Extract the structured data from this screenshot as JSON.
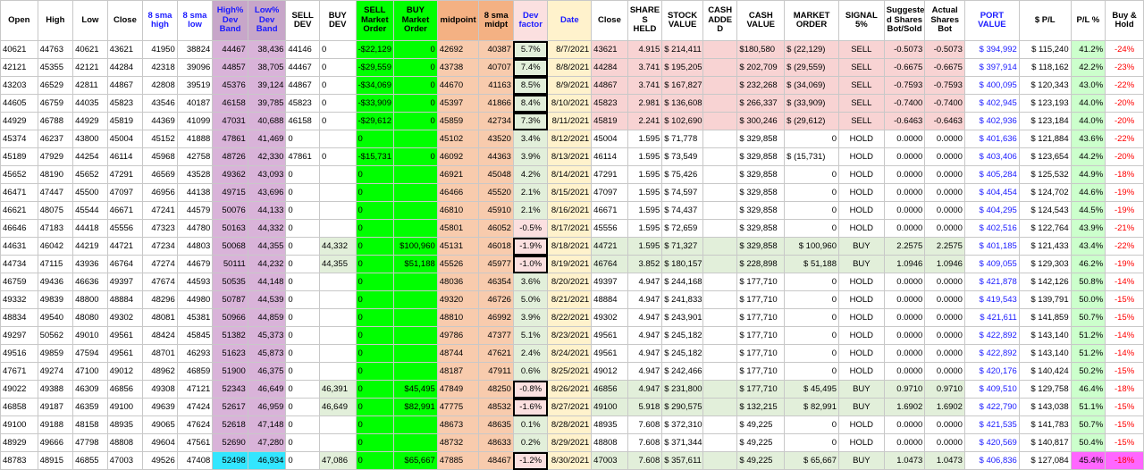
{
  "headers": [
    "Open",
    "High",
    "Low",
    "Close",
    "8 sma high",
    "8 sma low",
    "High% Dev Band",
    "Low% Dev Band",
    "SELL DEV",
    "BUY DEV",
    "SELL Market Order",
    "BUY Market Order",
    "midpoint",
    "8 sma midpt",
    "Dev factor",
    "Date",
    "Close",
    "SHARE S HELD",
    "STOCK VALUE",
    "CASH ADDE D",
    "CASH VALUE",
    "MARKET ORDER",
    "SIGNAL 5%",
    "Suggeste d Shares Bot/Sold",
    "Actual Shares Bot",
    "PORT VALUE",
    "$ P/L",
    "P/L %",
    "Buy & Hold"
  ],
  "rows": [
    {
      "t": "sell",
      "c": [
        "40621",
        "44763",
        "40621",
        "43621",
        "41950",
        "38824",
        "44467",
        "38,436",
        "44146",
        "0",
        "-$22,129",
        "0",
        "42692",
        "40387",
        "5.7%",
        "8/7/2021",
        "43621",
        "4.915",
        "$ 214,411",
        "",
        "$180,580",
        "$ (22,129)",
        "SELL",
        "-0.5073",
        "-0.5073",
        "$ 394,992",
        "$ 115,240",
        "41.2%",
        "-24%"
      ]
    },
    {
      "t": "sell",
      "c": [
        "42121",
        "45355",
        "42121",
        "44284",
        "42318",
        "39096",
        "44857",
        "38,705",
        "44467",
        "0",
        "-$29,559",
        "0",
        "43738",
        "40707",
        "7.4%",
        "8/8/2021",
        "44284",
        "3.741",
        "$ 195,205",
        "",
        "$ 202,709",
        "$ (29,559)",
        "SELL",
        "-0.6675",
        "-0.6675",
        "$ 397,914",
        "$ 118,162",
        "42.2%",
        "-23%"
      ]
    },
    {
      "t": "sell",
      "c": [
        "43203",
        "46529",
        "42811",
        "44867",
        "42808",
        "39519",
        "45376",
        "39,124",
        "44867",
        "0",
        "-$34,069",
        "0",
        "44670",
        "41163",
        "8.5%",
        "8/9/2021",
        "44867",
        "3.741",
        "$ 167,827",
        "",
        "$ 232,268",
        "$ (34,069)",
        "SELL",
        "-0.7593",
        "-0.7593",
        "$ 400,095",
        "$ 120,343",
        "43.0%",
        "-22%"
      ]
    },
    {
      "t": "sell",
      "c": [
        "44605",
        "46759",
        "44035",
        "45823",
        "43546",
        "40187",
        "46158",
        "39,785",
        "45823",
        "0",
        "-$33,909",
        "0",
        "45397",
        "41866",
        "8.4%",
        "8/10/2021",
        "45823",
        "2.981",
        "$ 136,608",
        "",
        "$ 266,337",
        "$ (33,909)",
        "SELL",
        "-0.7400",
        "-0.7400",
        "$ 402,945",
        "$ 123,193",
        "44.0%",
        "-20%"
      ]
    },
    {
      "t": "sell",
      "c": [
        "44929",
        "46788",
        "44929",
        "45819",
        "44369",
        "41099",
        "47031",
        "40,688",
        "46158",
        "0",
        "-$29,612",
        "0",
        "45859",
        "42734",
        "7.3%",
        "8/11/2021",
        "45819",
        "2.241",
        "$ 102,690",
        "",
        "$ 300,246",
        "$ (29,612)",
        "SELL",
        "-0.6463",
        "-0.6463",
        "$ 402,936",
        "$ 123,184",
        "44.0%",
        "-20%"
      ]
    },
    {
      "t": "hold",
      "c": [
        "45374",
        "46237",
        "43800",
        "45004",
        "45152",
        "41888",
        "47861",
        "41,469",
        "0",
        "",
        "0",
        "",
        "45102",
        "43520",
        "3.4%",
        "8/12/2021",
        "45004",
        "1.595",
        "$ 71,778",
        "",
        "$ 329,858",
        "0",
        "HOLD",
        "0.0000",
        "0.0000",
        "$ 401,636",
        "$ 121,884",
        "43.6%",
        "-22%"
      ]
    },
    {
      "t": "hold",
      "c": [
        "45189",
        "47929",
        "44254",
        "46114",
        "45968",
        "42758",
        "48726",
        "42,330",
        "47861",
        "0",
        "-$15,731",
        "0",
        "46092",
        "44363",
        "3.9%",
        "8/13/2021",
        "46114",
        "1.595",
        "$ 73,549",
        "",
        "$ 329,858",
        "$ (15,731)",
        "HOLD",
        "0.0000",
        "0.0000",
        "$ 403,406",
        "$ 123,654",
        "44.2%",
        "-20%"
      ]
    },
    {
      "t": "hold",
      "c": [
        "45652",
        "48190",
        "45652",
        "47291",
        "46569",
        "43528",
        "49362",
        "43,093",
        "0",
        "",
        "0",
        "",
        "46921",
        "45048",
        "4.2%",
        "8/14/2021",
        "47291",
        "1.595",
        "$ 75,426",
        "",
        "$ 329,858",
        "0",
        "HOLD",
        "0.0000",
        "0.0000",
        "$ 405,284",
        "$ 125,532",
        "44.9%",
        "-18%"
      ]
    },
    {
      "t": "hold",
      "c": [
        "46471",
        "47447",
        "45500",
        "47097",
        "46956",
        "44138",
        "49715",
        "43,696",
        "0",
        "",
        "0",
        "",
        "46466",
        "45520",
        "2.1%",
        "8/15/2021",
        "47097",
        "1.595",
        "$ 74,597",
        "",
        "$ 329,858",
        "0",
        "HOLD",
        "0.0000",
        "0.0000",
        "$ 404,454",
        "$ 124,702",
        "44.6%",
        "-19%"
      ]
    },
    {
      "t": "hold",
      "c": [
        "46621",
        "48075",
        "45544",
        "46671",
        "47241",
        "44579",
        "50076",
        "44,133",
        "0",
        "",
        "0",
        "",
        "46810",
        "45910",
        "2.1%",
        "8/16/2021",
        "46671",
        "1.595",
        "$ 74,437",
        "",
        "$ 329,858",
        "0",
        "HOLD",
        "0.0000",
        "0.0000",
        "$ 404,295",
        "$ 124,543",
        "44.5%",
        "-19%"
      ]
    },
    {
      "t": "hold",
      "c": [
        "46646",
        "47183",
        "44418",
        "45556",
        "47323",
        "44780",
        "50163",
        "44,332",
        "0",
        "",
        "0",
        "",
        "45801",
        "46052",
        "-0.5%",
        "8/17/2021",
        "45556",
        "1.595",
        "$ 72,659",
        "",
        "$ 329,858",
        "0",
        "HOLD",
        "0.0000",
        "0.0000",
        "$ 402,516",
        "$ 122,764",
        "43.9%",
        "-21%"
      ]
    },
    {
      "t": "buy",
      "c": [
        "44631",
        "46042",
        "44219",
        "44721",
        "47234",
        "44803",
        "50068",
        "44,355",
        "0",
        "44,332",
        "0",
        "$100,960",
        "45131",
        "46018",
        "-1.9%",
        "8/18/2021",
        "44721",
        "1.595",
        "$ 71,327",
        "",
        "$ 329,858",
        "$ 100,960",
        "BUY",
        "2.2575",
        "2.2575",
        "$ 401,185",
        "$ 121,433",
        "43.4%",
        "-22%"
      ]
    },
    {
      "t": "buy",
      "c": [
        "44734",
        "47115",
        "43936",
        "46764",
        "47274",
        "44679",
        "50111",
        "44,232",
        "0",
        "44,355",
        "0",
        "$51,188",
        "45526",
        "45977",
        "-1.0%",
        "8/19/2021",
        "46764",
        "3.852",
        "$ 180,157",
        "",
        "$ 228,898",
        "$ 51,188",
        "BUY",
        "1.0946",
        "1.0946",
        "$ 409,055",
        "$ 129,303",
        "46.2%",
        "-19%"
      ]
    },
    {
      "t": "hold",
      "c": [
        "46759",
        "49436",
        "46636",
        "49397",
        "47674",
        "44593",
        "50535",
        "44,148",
        "0",
        "",
        "0",
        "",
        "48036",
        "46354",
        "3.6%",
        "8/20/2021",
        "49397",
        "4.947",
        "$ 244,168",
        "",
        "$ 177,710",
        "0",
        "HOLD",
        "0.0000",
        "0.0000",
        "$ 421,878",
        "$ 142,126",
        "50.8%",
        "-14%"
      ]
    },
    {
      "t": "hold",
      "c": [
        "49332",
        "49839",
        "48800",
        "48884",
        "48296",
        "44980",
        "50787",
        "44,539",
        "0",
        "",
        "0",
        "",
        "49320",
        "46726",
        "5.0%",
        "8/21/2021",
        "48884",
        "4.947",
        "$ 241,833",
        "",
        "$ 177,710",
        "0",
        "HOLD",
        "0.0000",
        "0.0000",
        "$ 419,543",
        "$ 139,791",
        "50.0%",
        "-15%"
      ]
    },
    {
      "t": "hold",
      "c": [
        "48834",
        "49540",
        "48080",
        "49302",
        "48081",
        "45381",
        "50966",
        "44,859",
        "0",
        "",
        "0",
        "",
        "48810",
        "46992",
        "3.9%",
        "8/22/2021",
        "49302",
        "4.947",
        "$ 243,901",
        "",
        "$ 177,710",
        "0",
        "HOLD",
        "0.0000",
        "0.0000",
        "$ 421,611",
        "$ 141,859",
        "50.7%",
        "-15%"
      ]
    },
    {
      "t": "hold",
      "c": [
        "49297",
        "50562",
        "49010",
        "49561",
        "48424",
        "45845",
        "51382",
        "45,373",
        "0",
        "",
        "0",
        "",
        "49786",
        "47377",
        "5.1%",
        "8/23/2021",
        "49561",
        "4.947",
        "$ 245,182",
        "",
        "$ 177,710",
        "0",
        "HOLD",
        "0.0000",
        "0.0000",
        "$ 422,892",
        "$ 143,140",
        "51.2%",
        "-14%"
      ]
    },
    {
      "t": "hold",
      "c": [
        "49516",
        "49859",
        "47594",
        "49561",
        "48701",
        "46293",
        "51623",
        "45,873",
        "0",
        "",
        "0",
        "",
        "48744",
        "47621",
        "2.4%",
        "8/24/2021",
        "49561",
        "4.947",
        "$ 245,182",
        "",
        "$ 177,710",
        "0",
        "HOLD",
        "0.0000",
        "0.0000",
        "$ 422,892",
        "$ 143,140",
        "51.2%",
        "-14%"
      ]
    },
    {
      "t": "hold",
      "c": [
        "47671",
        "49274",
        "47100",
        "49012",
        "48962",
        "46859",
        "51900",
        "46,375",
        "0",
        "",
        "0",
        "",
        "48187",
        "47911",
        "0.6%",
        "8/25/2021",
        "49012",
        "4.947",
        "$ 242,466",
        "",
        "$ 177,710",
        "0",
        "HOLD",
        "0.0000",
        "0.0000",
        "$ 420,176",
        "$ 140,424",
        "50.2%",
        "-15%"
      ]
    },
    {
      "t": "buy",
      "c": [
        "49022",
        "49388",
        "46309",
        "46856",
        "49308",
        "47121",
        "52343",
        "46,649",
        "0",
        "46,391",
        "0",
        "$45,495",
        "47849",
        "48250",
        "-0.8%",
        "8/26/2021",
        "46856",
        "4.947",
        "$ 231,800",
        "",
        "$ 177,710",
        "$ 45,495",
        "BUY",
        "0.9710",
        "0.9710",
        "$ 409,510",
        "$ 129,758",
        "46.4%",
        "-18%"
      ]
    },
    {
      "t": "buy",
      "c": [
        "46858",
        "49187",
        "46359",
        "49100",
        "49639",
        "47424",
        "52617",
        "46,959",
        "0",
        "46,649",
        "0",
        "$82,991",
        "47775",
        "48532",
        "-1.6%",
        "8/27/2021",
        "49100",
        "5.918",
        "$ 290,575",
        "",
        "$ 132,215",
        "$ 82,991",
        "BUY",
        "1.6902",
        "1.6902",
        "$ 422,790",
        "$ 143,038",
        "51.1%",
        "-15%"
      ]
    },
    {
      "t": "hold",
      "c": [
        "49100",
        "49188",
        "48158",
        "48935",
        "49065",
        "47624",
        "52618",
        "47,148",
        "0",
        "",
        "0",
        "",
        "48673",
        "48635",
        "0.1%",
        "8/28/2021",
        "48935",
        "7.608",
        "$ 372,310",
        "",
        "$ 49,225",
        "0",
        "HOLD",
        "0.0000",
        "0.0000",
        "$ 421,535",
        "$ 141,783",
        "50.7%",
        "-15%"
      ]
    },
    {
      "t": "hold",
      "c": [
        "48929",
        "49666",
        "47798",
        "48808",
        "49604",
        "47561",
        "52690",
        "47,280",
        "0",
        "",
        "0",
        "",
        "48732",
        "48633",
        "0.2%",
        "8/29/2021",
        "48808",
        "7.608",
        "$ 371,344",
        "",
        "$ 49,225",
        "0",
        "HOLD",
        "0.0000",
        "0.0000",
        "$ 420,569",
        "$ 140,817",
        "50.4%",
        "-15%"
      ]
    },
    {
      "t": "buy",
      "c": [
        "48783",
        "48915",
        "46855",
        "47003",
        "49526",
        "47408",
        "52498",
        "46,934",
        "0",
        "47,086",
        "0",
        "$65,667",
        "47885",
        "48467",
        "-1.2%",
        "8/30/2021",
        "47003",
        "7.608",
        "$ 357,611",
        "",
        "$ 49,225",
        "$ 65,667",
        "BUY",
        "1.0473",
        "1.0473",
        "$ 406,836",
        "$ 127,084",
        "45.4%",
        "-18%"
      ]
    }
  ],
  "colors": {
    "band": "#d9b3d9",
    "green": "#00ff00",
    "midpoint": "#f8cbad",
    "date": "#fff2cc",
    "sell_row": "#f8d3d3",
    "buy_row": "#e2efda",
    "highlight": "#33e6ff",
    "magenta": "#ff66ff"
  }
}
